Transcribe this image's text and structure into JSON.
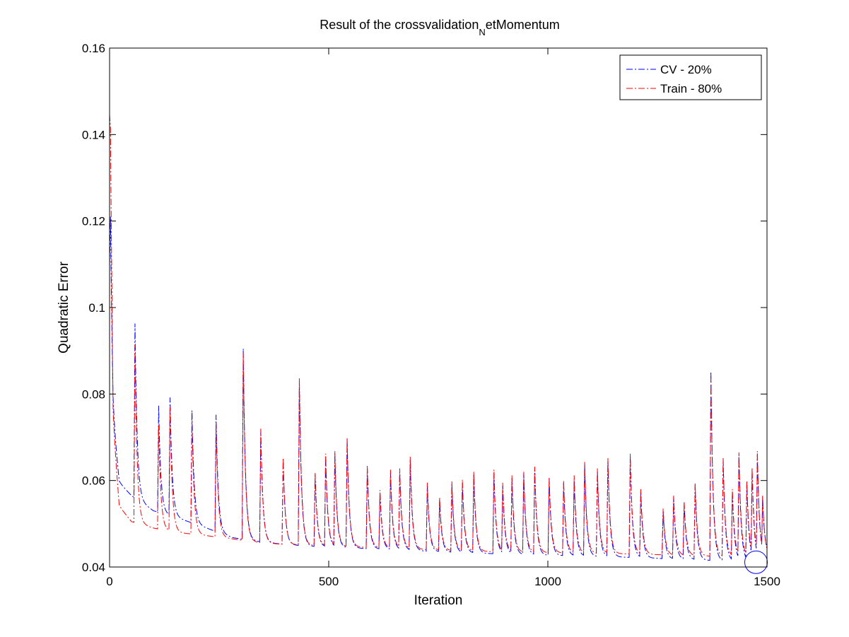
{
  "chart_data": {
    "type": "line",
    "title_main": "Result of the crossvalidation",
    "title_sub": "N",
    "title_rest": "etMomentum",
    "xlabel": "Iteration",
    "ylabel": "Quadratic Error",
    "xlim": [
      0,
      1500
    ],
    "ylim": [
      0.04,
      0.16
    ],
    "xticks": [
      0,
      500,
      1000,
      1500
    ],
    "xtick_labels": [
      "0",
      "500",
      "1000",
      "1500"
    ],
    "yticks": [
      0.04,
      0.06,
      0.08,
      0.1,
      0.12,
      0.14,
      0.16
    ],
    "ytick_labels": [
      "0.04",
      "0.06",
      "0.08",
      "0.1",
      "0.12",
      "0.14",
      "0.16"
    ],
    "grid": false,
    "legend_position": "top-right",
    "marker": {
      "x": 1475,
      "y": 0.0411,
      "color": "#0000ff"
    },
    "series": [
      {
        "name": "CV - 20%",
        "color": "#0000ff",
        "line_style": "dash-dot",
        "baseline": [
          [
            0,
            0.105
          ],
          [
            8,
            0.072
          ],
          [
            22,
            0.0595
          ],
          [
            50,
            0.0565
          ],
          [
            100,
            0.053
          ],
          [
            150,
            0.0515
          ],
          [
            200,
            0.0498
          ],
          [
            280,
            0.0468
          ],
          [
            350,
            0.0457
          ],
          [
            450,
            0.0448
          ],
          [
            600,
            0.0442
          ],
          [
            800,
            0.0433
          ],
          [
            1000,
            0.0427
          ],
          [
            1200,
            0.0422
          ],
          [
            1300,
            0.0418
          ],
          [
            1400,
            0.0414
          ],
          [
            1475,
            0.0411
          ],
          [
            1500,
            0.0425
          ]
        ],
        "spikes": [
          [
            2,
            0.121
          ],
          [
            58,
            0.0963
          ],
          [
            112,
            0.0773
          ],
          [
            138,
            0.0792
          ],
          [
            188,
            0.0762
          ],
          [
            243,
            0.0752
          ],
          [
            305,
            0.0905
          ],
          [
            345,
            0.0715
          ],
          [
            396,
            0.0648
          ],
          [
            433,
            0.083
          ],
          [
            469,
            0.0614
          ],
          [
            493,
            0.0655
          ],
          [
            514,
            0.0663
          ],
          [
            542,
            0.0696
          ],
          [
            588,
            0.0628
          ],
          [
            617,
            0.057
          ],
          [
            641,
            0.0618
          ],
          [
            662,
            0.062
          ],
          [
            686,
            0.0648
          ],
          [
            725,
            0.0588
          ],
          [
            753,
            0.0555
          ],
          [
            781,
            0.0592
          ],
          [
            805,
            0.0595
          ],
          [
            831,
            0.0615
          ],
          [
            877,
            0.0618
          ],
          [
            897,
            0.0588
          ],
          [
            918,
            0.0605
          ],
          [
            945,
            0.0615
          ],
          [
            970,
            0.063
          ],
          [
            1003,
            0.0605
          ],
          [
            1036,
            0.0595
          ],
          [
            1060,
            0.0605
          ],
          [
            1084,
            0.0638
          ],
          [
            1113,
            0.0622
          ],
          [
            1137,
            0.0648
          ],
          [
            1188,
            0.0658
          ],
          [
            1212,
            0.0575
          ],
          [
            1263,
            0.053
          ],
          [
            1287,
            0.0562
          ],
          [
            1311,
            0.0548
          ],
          [
            1336,
            0.059
          ],
          [
            1372,
            0.0852
          ],
          [
            1400,
            0.0648
          ],
          [
            1421,
            0.0575
          ],
          [
            1436,
            0.066
          ],
          [
            1454,
            0.0595
          ],
          [
            1466,
            0.0625
          ],
          [
            1478,
            0.0662
          ],
          [
            1490,
            0.0562
          ]
        ]
      },
      {
        "name": "Train - 80%",
        "color": "#ff0000",
        "line_style": "dash-dot",
        "baseline": [
          [
            0,
            0.141
          ],
          [
            8,
            0.071
          ],
          [
            22,
            0.054
          ],
          [
            50,
            0.0505
          ],
          [
            100,
            0.049
          ],
          [
            150,
            0.048
          ],
          [
            200,
            0.0475
          ],
          [
            280,
            0.0465
          ],
          [
            350,
            0.0455
          ],
          [
            450,
            0.045
          ],
          [
            600,
            0.0445
          ],
          [
            800,
            0.0437
          ],
          [
            1000,
            0.0433
          ],
          [
            1200,
            0.043
          ],
          [
            1300,
            0.0427
          ],
          [
            1400,
            0.0424
          ],
          [
            1475,
            0.0421
          ],
          [
            1500,
            0.0422
          ]
        ],
        "spikes": [
          [
            2,
            0.1415
          ],
          [
            58,
            0.0915
          ],
          [
            112,
            0.0728
          ],
          [
            138,
            0.077
          ],
          [
            188,
            0.0738
          ],
          [
            243,
            0.073
          ],
          [
            305,
            0.0895
          ],
          [
            345,
            0.072
          ],
          [
            396,
            0.0652
          ],
          [
            433,
            0.0838
          ],
          [
            469,
            0.0618
          ],
          [
            493,
            0.0662
          ],
          [
            514,
            0.0668
          ],
          [
            542,
            0.0698
          ],
          [
            588,
            0.0635
          ],
          [
            617,
            0.0578
          ],
          [
            641,
            0.0625
          ],
          [
            662,
            0.0628
          ],
          [
            686,
            0.0655
          ],
          [
            725,
            0.0595
          ],
          [
            753,
            0.0562
          ],
          [
            781,
            0.0598
          ],
          [
            805,
            0.0602
          ],
          [
            831,
            0.062
          ],
          [
            877,
            0.0625
          ],
          [
            897,
            0.0595
          ],
          [
            918,
            0.0612
          ],
          [
            945,
            0.062
          ],
          [
            970,
            0.0632
          ],
          [
            1003,
            0.0608
          ],
          [
            1036,
            0.06
          ],
          [
            1060,
            0.0612
          ],
          [
            1084,
            0.0643
          ],
          [
            1113,
            0.0628
          ],
          [
            1137,
            0.0652
          ],
          [
            1188,
            0.0662
          ],
          [
            1212,
            0.058
          ],
          [
            1263,
            0.0535
          ],
          [
            1287,
            0.0565
          ],
          [
            1311,
            0.0552
          ],
          [
            1336,
            0.0595
          ],
          [
            1372,
            0.0838
          ],
          [
            1400,
            0.0652
          ],
          [
            1421,
            0.058
          ],
          [
            1436,
            0.0665
          ],
          [
            1454,
            0.06
          ],
          [
            1466,
            0.063
          ],
          [
            1478,
            0.0668
          ],
          [
            1490,
            0.0565
          ]
        ]
      }
    ]
  }
}
